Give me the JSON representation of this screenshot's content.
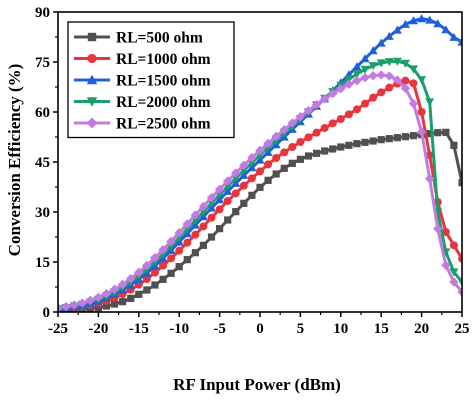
{
  "chart_data": {
    "type": "line",
    "xlabel": "RF Input Power (dBm)",
    "ylabel": "Conversion Efficiency (%)",
    "xlim": [
      -25,
      25
    ],
    "ylim": [
      0,
      90
    ],
    "xticks": [
      -25,
      -20,
      -15,
      -10,
      -5,
      0,
      5,
      10,
      15,
      20,
      25
    ],
    "yticks": [
      0,
      15,
      30,
      45,
      60,
      75,
      90
    ],
    "grid": false,
    "legend_position": "top-left",
    "x": [
      -25,
      -24,
      -23,
      -22,
      -21,
      -20,
      -19,
      -18,
      -17,
      -16,
      -15,
      -14,
      -13,
      -12,
      -11,
      -10,
      -9,
      -8,
      -7,
      -6,
      -5,
      -4,
      -3,
      -2,
      -1,
      0,
      1,
      2,
      3,
      4,
      5,
      6,
      7,
      8,
      9,
      10,
      11,
      12,
      13,
      14,
      15,
      16,
      17,
      18,
      19,
      20,
      21,
      22,
      23,
      24,
      25
    ],
    "series": [
      {
        "name": "RL=500 ohm",
        "color": "#505050",
        "marker": "square",
        "values": [
          0.6,
          0.7,
          0.8,
          0.9,
          1.0,
          1.3,
          1.8,
          2.4,
          3.1,
          4.1,
          5.3,
          6.6,
          8.1,
          9.8,
          11.6,
          13.6,
          15.7,
          17.8,
          20.0,
          22.5,
          25.0,
          27.6,
          30.1,
          32.6,
          35.0,
          37.4,
          39.5,
          41.4,
          43.1,
          44.6,
          45.8,
          46.8,
          47.6,
          48.3,
          48.9,
          49.5,
          50.0,
          50.5,
          50.9,
          51.3,
          51.7,
          52.0,
          52.3,
          52.6,
          52.9,
          53.2,
          53.5,
          53.8,
          53.9,
          50.0,
          38.8
        ]
      },
      {
        "name": "RL=1000 ohm",
        "color": "#e8343c",
        "marker": "circle",
        "values": [
          0.8,
          1.0,
          1.3,
          1.6,
          2.0,
          2.6,
          3.3,
          4.3,
          5.4,
          6.7,
          8.2,
          9.9,
          11.8,
          13.9,
          16.1,
          18.4,
          20.8,
          23.2,
          25.7,
          28.3,
          30.8,
          33.3,
          35.6,
          37.9,
          40.1,
          42.2,
          44.3,
          46.2,
          47.9,
          49.5,
          51.0,
          52.4,
          53.8,
          55.2,
          56.6,
          57.9,
          59.3,
          60.8,
          62.5,
          64.3,
          65.9,
          67.3,
          68.5,
          69.4,
          68.6,
          60.0,
          47.0,
          33.0,
          24.0,
          20.0,
          16.0
        ]
      },
      {
        "name": "RL=1500 ohm",
        "color": "#1f5fd8",
        "marker": "triangle-up",
        "values": [
          0.9,
          1.2,
          1.6,
          2.0,
          2.6,
          3.3,
          4.2,
          5.3,
          6.6,
          8.1,
          9.8,
          11.7,
          13.8,
          16.1,
          18.5,
          21.0,
          23.5,
          26.1,
          28.6,
          31.2,
          33.7,
          36.2,
          38.6,
          41.0,
          43.3,
          45.6,
          47.9,
          50.2,
          52.5,
          54.8,
          57.1,
          59.4,
          61.7,
          64.0,
          66.4,
          68.8,
          71.2,
          73.6,
          76.0,
          78.4,
          80.7,
          82.7,
          84.6,
          86.3,
          87.4,
          88.0,
          87.6,
          86.5,
          84.7,
          82.4,
          81.0
        ]
      },
      {
        "name": "RL=2000 ohm",
        "color": "#1a9e6a",
        "marker": "triangle-down",
        "values": [
          1.0,
          1.3,
          1.8,
          2.3,
          3.0,
          3.8,
          4.8,
          6.0,
          7.4,
          9.0,
          10.8,
          12.8,
          15.0,
          17.3,
          19.8,
          22.3,
          24.9,
          27.5,
          30.1,
          32.7,
          35.2,
          37.7,
          40.1,
          42.5,
          44.8,
          47.1,
          49.3,
          51.5,
          53.7,
          55.8,
          57.9,
          60.0,
          62.1,
          64.1,
          66.1,
          68.0,
          69.8,
          71.4,
          72.8,
          73.9,
          74.7,
          75.1,
          75.2,
          74.6,
          72.9,
          69.7,
          63.0,
          30.0,
          18.0,
          12.0,
          9.0
        ]
      },
      {
        "name": "RL=2500 ohm",
        "color": "#c27be0",
        "marker": "diamond",
        "values": [
          1.2,
          1.6,
          2.1,
          2.7,
          3.5,
          4.4,
          5.5,
          6.8,
          8.3,
          10.0,
          11.9,
          14.0,
          16.3,
          18.7,
          21.2,
          23.8,
          26.4,
          29.1,
          31.7,
          34.3,
          36.8,
          39.3,
          41.7,
          44.0,
          46.3,
          48.5,
          50.6,
          52.7,
          54.7,
          56.7,
          58.6,
          60.4,
          62.2,
          63.9,
          65.5,
          67.0,
          68.3,
          69.4,
          70.3,
          70.9,
          71.1,
          70.8,
          69.6,
          67.1,
          62.5,
          54.0,
          40.0,
          25.0,
          14.0,
          9.0,
          6.0
        ]
      }
    ]
  }
}
